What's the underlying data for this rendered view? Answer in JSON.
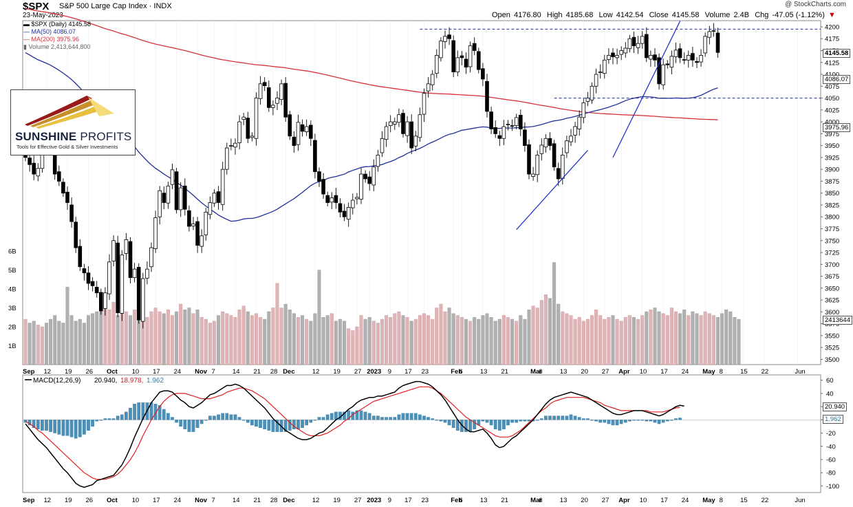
{
  "header": {
    "symbol": "$SPX",
    "name": "S&P 500 Large Cap Index",
    "exchange": "INDX",
    "date": "23-May-2023",
    "credit": "@ StockCharts.com",
    "open_label": "Open",
    "open": "4176.80",
    "high_label": "High",
    "high": "4185.68",
    "low_label": "Low",
    "low": "4142.54",
    "close_label": "Close",
    "close": "4145.58",
    "volume_label": "Volume",
    "volume": "2.4B",
    "chg_label": "Chg",
    "chg": "-47.05 (-1.12%)",
    "chg_arrow": "▼"
  },
  "legend": {
    "price": "$SPX (Daily) 4145.58",
    "ma50": "MA(50) 4086.07",
    "ma200": "MA(200) 3975.96",
    "volume": "Volume 2,413,644,800"
  },
  "logo": {
    "name_a": "SUNSHINE",
    "name_b": "PROFITS",
    "tagline": "Tools for Effective Gold & Silver Investments"
  },
  "tags": {
    "close": "4145.58",
    "ma50": "4086.07",
    "ma200": "3975.96",
    "volume": "2413644",
    "macd": "20.940",
    "hist": "1.962"
  },
  "macd_legend": {
    "label": "MACD(12,26,9)",
    "macd": "20.940",
    "signal": "18.978",
    "hist": "1.962"
  },
  "colors": {
    "up_volume": "#e0b4b6",
    "down_volume": "#b0b0b0",
    "ma50": "#1f2f9a",
    "ma200": "#d7303b",
    "macd_line": "#000000",
    "signal_line": "#e02020",
    "histogram": "#4a90b8",
    "trendline": "#2233cc",
    "resistance": "#1f2f9a"
  },
  "chart_data": {
    "type": "candlestick",
    "title": "$SPX S&P 500 Large Cap Index INDX",
    "price_ticks": [
      3500,
      3525,
      3550,
      3575,
      3600,
      3625,
      3650,
      3675,
      3700,
      3725,
      3750,
      3775,
      3800,
      3825,
      3850,
      3875,
      3900,
      3925,
      3950,
      3975,
      4000,
      4025,
      4050,
      4075,
      4100,
      4125,
      4150,
      4175,
      4200
    ],
    "price_range": [
      3489,
      4213
    ],
    "volume_ticks": [
      "1B",
      "2B",
      "3B",
      "4B",
      "5B",
      "6B"
    ],
    "x_labels": [
      {
        "label": "Sep",
        "i": 0
      },
      {
        "label": "12",
        "i": 5
      },
      {
        "label": "19",
        "i": 10
      },
      {
        "label": "26",
        "i": 15
      },
      {
        "label": "Oct",
        "i": 20
      },
      {
        "label": "10",
        "i": 26
      },
      {
        "label": "17",
        "i": 31
      },
      {
        "label": "24",
        "i": 36
      },
      {
        "label": "Nov",
        "i": 41
      },
      {
        "label": "7",
        "i": 45
      },
      {
        "label": "14",
        "i": 50
      },
      {
        "label": "21",
        "i": 55
      },
      {
        "label": "28",
        "i": 59
      },
      {
        "label": "Dec",
        "i": 62
      },
      {
        "label": "12",
        "i": 69
      },
      {
        "label": "19",
        "i": 74
      },
      {
        "label": "27",
        "i": 79
      },
      {
        "label": "2023",
        "i": 82
      },
      {
        "label": "9",
        "i": 87
      },
      {
        "label": "17",
        "i": 91
      },
      {
        "label": "23",
        "i": 95
      },
      {
        "label": "Feb",
        "i": 102
      },
      {
        "label": "6",
        "i": 104
      },
      {
        "label": "13",
        "i": 109
      },
      {
        "label": "21",
        "i": 114
      },
      {
        "label": "Mar",
        "i": 121
      },
      {
        "label": "6",
        "i": 123
      },
      {
        "label": "13",
        "i": 128
      },
      {
        "label": "20",
        "i": 133
      },
      {
        "label": "27",
        "i": 138
      },
      {
        "label": "Apr",
        "i": 142
      },
      {
        "label": "10",
        "i": 147
      },
      {
        "label": "17",
        "i": 152
      },
      {
        "label": "24",
        "i": 157
      },
      {
        "label": "May",
        "i": 162
      },
      {
        "label": "8",
        "i": 166
      },
      {
        "label": "15",
        "i": 171
      },
      {
        "label": "22",
        "i": 176
      },
      {
        "label": "Jun",
        "i": 184
      }
    ],
    "macd_ticks": [
      60,
      40,
      20,
      0,
      -20,
      -40,
      -60,
      -80,
      -100
    ],
    "macd_range": [
      -110,
      68
    ],
    "resistance_levels": [
      4195,
      4050
    ],
    "trendline_1": [
      [
        117,
        3773
      ],
      [
        134,
        3940
      ]
    ],
    "trendline_2": [
      [
        140,
        3925
      ],
      [
        156,
        4212
      ]
    ],
    "closes": [
      3925,
      3910,
      3890,
      3902,
      3975,
      3960,
      3945,
      3890,
      3875,
      3850,
      3830,
      3790,
      3735,
      3695,
      3682,
      3660,
      3655,
      3640,
      3602,
      3640,
      3705,
      3750,
      3598,
      3720,
      3752,
      3672,
      3690,
      3583,
      3670,
      3690,
      3735,
      3798,
      3855,
      3830,
      3865,
      3899,
      3815,
      3861,
      3816,
      3780,
      3785,
      3740,
      3760,
      3810,
      3830,
      3850,
      3830,
      3900,
      3945,
      3950,
      3955,
      4000,
      4010,
      3965,
      3970,
      4050,
      4080,
      4076,
      4030,
      4035,
      4050,
      4080,
      4010,
      3970,
      3950,
      3999,
      3980,
      3990,
      3965,
      3895,
      3875,
      3848,
      3830,
      3840,
      3830,
      3810,
      3800,
      3820,
      3835,
      3841,
      3890,
      3880,
      3870,
      3905,
      3930,
      3965,
      3990,
      4000,
      4000,
      4015,
      3975,
      4000,
      3945,
      3970,
      4015,
      4060,
      4080,
      4100,
      4140,
      4170,
      4180,
      4175,
      4105,
      4135,
      4135,
      4115,
      4160,
      4150,
      4110,
      4090,
      4022,
      3985,
      3975,
      3965,
      3990,
      3995,
      3991,
      4009,
      3985,
      3950,
      3890,
      3890,
      3930,
      3951,
      3965,
      3950,
      3905,
      3880,
      3930,
      3960,
      3970,
      3990,
      4010,
      4040,
      4050,
      4075,
      4100,
      4105,
      4130,
      4140,
      4137,
      4140,
      4150,
      4155,
      4175,
      4160,
      4165,
      4180,
      4135,
      4140,
      4130,
      4080,
      4120,
      4120,
      4138,
      4151,
      4135,
      4130,
      4140,
      4130,
      4125,
      4140,
      4180,
      4190,
      4192,
      4146
    ],
    "volume": [
      2.4,
      2.2,
      2.3,
      2.1,
      2.0,
      2.2,
      2.4,
      2.6,
      2.3,
      2.2,
      4.1,
      2.6,
      2.3,
      2.4,
      2.2,
      2.6,
      2.7,
      2.8,
      2.9,
      3.0,
      2.9,
      3.3,
      2.6,
      2.7,
      2.8,
      2.6,
      2.9,
      3.1,
      2.7,
      2.5,
      2.8,
      3.0,
      2.8,
      2.7,
      2.9,
      2.6,
      2.8,
      3.2,
      2.9,
      3.0,
      2.7,
      2.9,
      2.5,
      2.4,
      2.2,
      2.3,
      2.6,
      2.8,
      2.7,
      2.6,
      2.5,
      2.9,
      3.1,
      2.8,
      2.6,
      2.7,
      2.5,
      2.4,
      2.8,
      3.0,
      4.3,
      3.0,
      3.2,
      2.9,
      2.7,
      2.5,
      2.6,
      2.4,
      2.3,
      2.7,
      5.0,
      2.5,
      2.6,
      2.7,
      2.3,
      2.4,
      2.3,
      1.9,
      1.8,
      2.0,
      2.6,
      2.4,
      2.5,
      2.3,
      2.2,
      2.4,
      2.6,
      2.5,
      2.7,
      2.8,
      2.6,
      2.5,
      2.3,
      2.4,
      2.6,
      2.7,
      2.6,
      2.4,
      3.0,
      3.2,
      2.8,
      3.0,
      2.7,
      2.6,
      2.5,
      2.4,
      2.3,
      2.5,
      2.4,
      2.6,
      2.7,
      2.5,
      2.3,
      2.4,
      2.6,
      2.5,
      2.4,
      2.3,
      2.6,
      2.4,
      2.9,
      3.1,
      3.0,
      3.4,
      3.7,
      3.5,
      5.4,
      3.2,
      2.8,
      2.7,
      2.6,
      2.4,
      2.5,
      2.3,
      2.4,
      2.6,
      2.9,
      2.6,
      2.4,
      2.5,
      2.6,
      2.4,
      2.3,
      2.5,
      2.6,
      2.5,
      2.4,
      2.6,
      2.8,
      2.9,
      3.0,
      2.8,
      2.7,
      2.6,
      3.0,
      2.8,
      2.7,
      2.9,
      2.6,
      2.8,
      2.7,
      2.6,
      2.8,
      2.7,
      2.6,
      2.5,
      2.7,
      2.9,
      2.8,
      2.5,
      2.4
    ],
    "macd": [
      -6,
      -14,
      -22,
      -30,
      -36,
      -42,
      -50,
      -58,
      -66,
      -74,
      -80,
      -88,
      -96,
      -100,
      -102,
      -100,
      -98,
      -92,
      -90,
      -88,
      -86,
      -84,
      -76,
      -68,
      -56,
      -42,
      -26,
      -12,
      2,
      14,
      26,
      34,
      42,
      44,
      44,
      42,
      36,
      30,
      26,
      20,
      18,
      22,
      26,
      32,
      38,
      40,
      44,
      48,
      52,
      52,
      54,
      52,
      48,
      42,
      36,
      30,
      24,
      18,
      10,
      2,
      -4,
      -10,
      -16,
      -20,
      -24,
      -28,
      -30,
      -30,
      -28,
      -24,
      -20,
      -18,
      -12,
      -6,
      0,
      4,
      10,
      16,
      20,
      26,
      30,
      32,
      34,
      34,
      36,
      36,
      38,
      40,
      42,
      48,
      52,
      54,
      56,
      58,
      58,
      56,
      54,
      50,
      44,
      38,
      30,
      20,
      10,
      0,
      -8,
      -14,
      -18,
      -18,
      -16,
      -14,
      -20,
      -28,
      -38,
      -42,
      -40,
      -34,
      -28,
      -24,
      -18,
      -12,
      -6,
      0,
      8,
      16,
      24,
      30,
      34,
      36,
      38,
      40,
      42,
      40,
      38,
      36,
      34,
      30,
      26,
      22,
      18,
      14,
      10,
      8,
      8,
      10,
      12,
      14,
      14,
      14,
      12,
      10,
      8,
      6,
      8,
      12,
      16,
      20,
      22,
      21
    ],
    "signal": [
      -2,
      -6,
      -10,
      -16,
      -20,
      -26,
      -32,
      -38,
      -44,
      -50,
      -56,
      -62,
      -68,
      -74,
      -80,
      -84,
      -88,
      -90,
      -90,
      -90,
      -88,
      -86,
      -82,
      -76,
      -68,
      -60,
      -50,
      -38,
      -24,
      -12,
      0,
      10,
      20,
      28,
      34,
      38,
      40,
      40,
      40,
      38,
      36,
      34,
      32,
      32,
      32,
      34,
      36,
      38,
      42,
      44,
      46,
      48,
      48,
      46,
      44,
      40,
      36,
      32,
      26,
      20,
      14,
      8,
      2,
      -4,
      -10,
      -14,
      -18,
      -22,
      -24,
      -24,
      -24,
      -22,
      -20,
      -16,
      -12,
      -8,
      -2,
      2,
      8,
      12,
      16,
      20,
      24,
      28,
      30,
      32,
      34,
      36,
      38,
      40,
      42,
      44,
      46,
      48,
      50,
      50,
      50,
      48,
      44,
      40,
      34,
      28,
      22,
      16,
      10,
      4,
      0,
      -4,
      -8,
      -12,
      -16,
      -20,
      -24,
      -26,
      -26,
      -26,
      -24,
      -20,
      -16,
      -10,
      -4,
      2,
      8,
      14,
      18,
      24,
      28,
      30,
      32,
      34,
      34,
      34,
      34,
      34,
      32,
      30,
      28,
      26,
      22,
      20,
      18,
      16,
      14,
      14,
      14,
      14,
      14,
      14,
      14,
      12,
      12,
      12,
      12,
      14,
      16,
      18,
      19
    ]
  }
}
